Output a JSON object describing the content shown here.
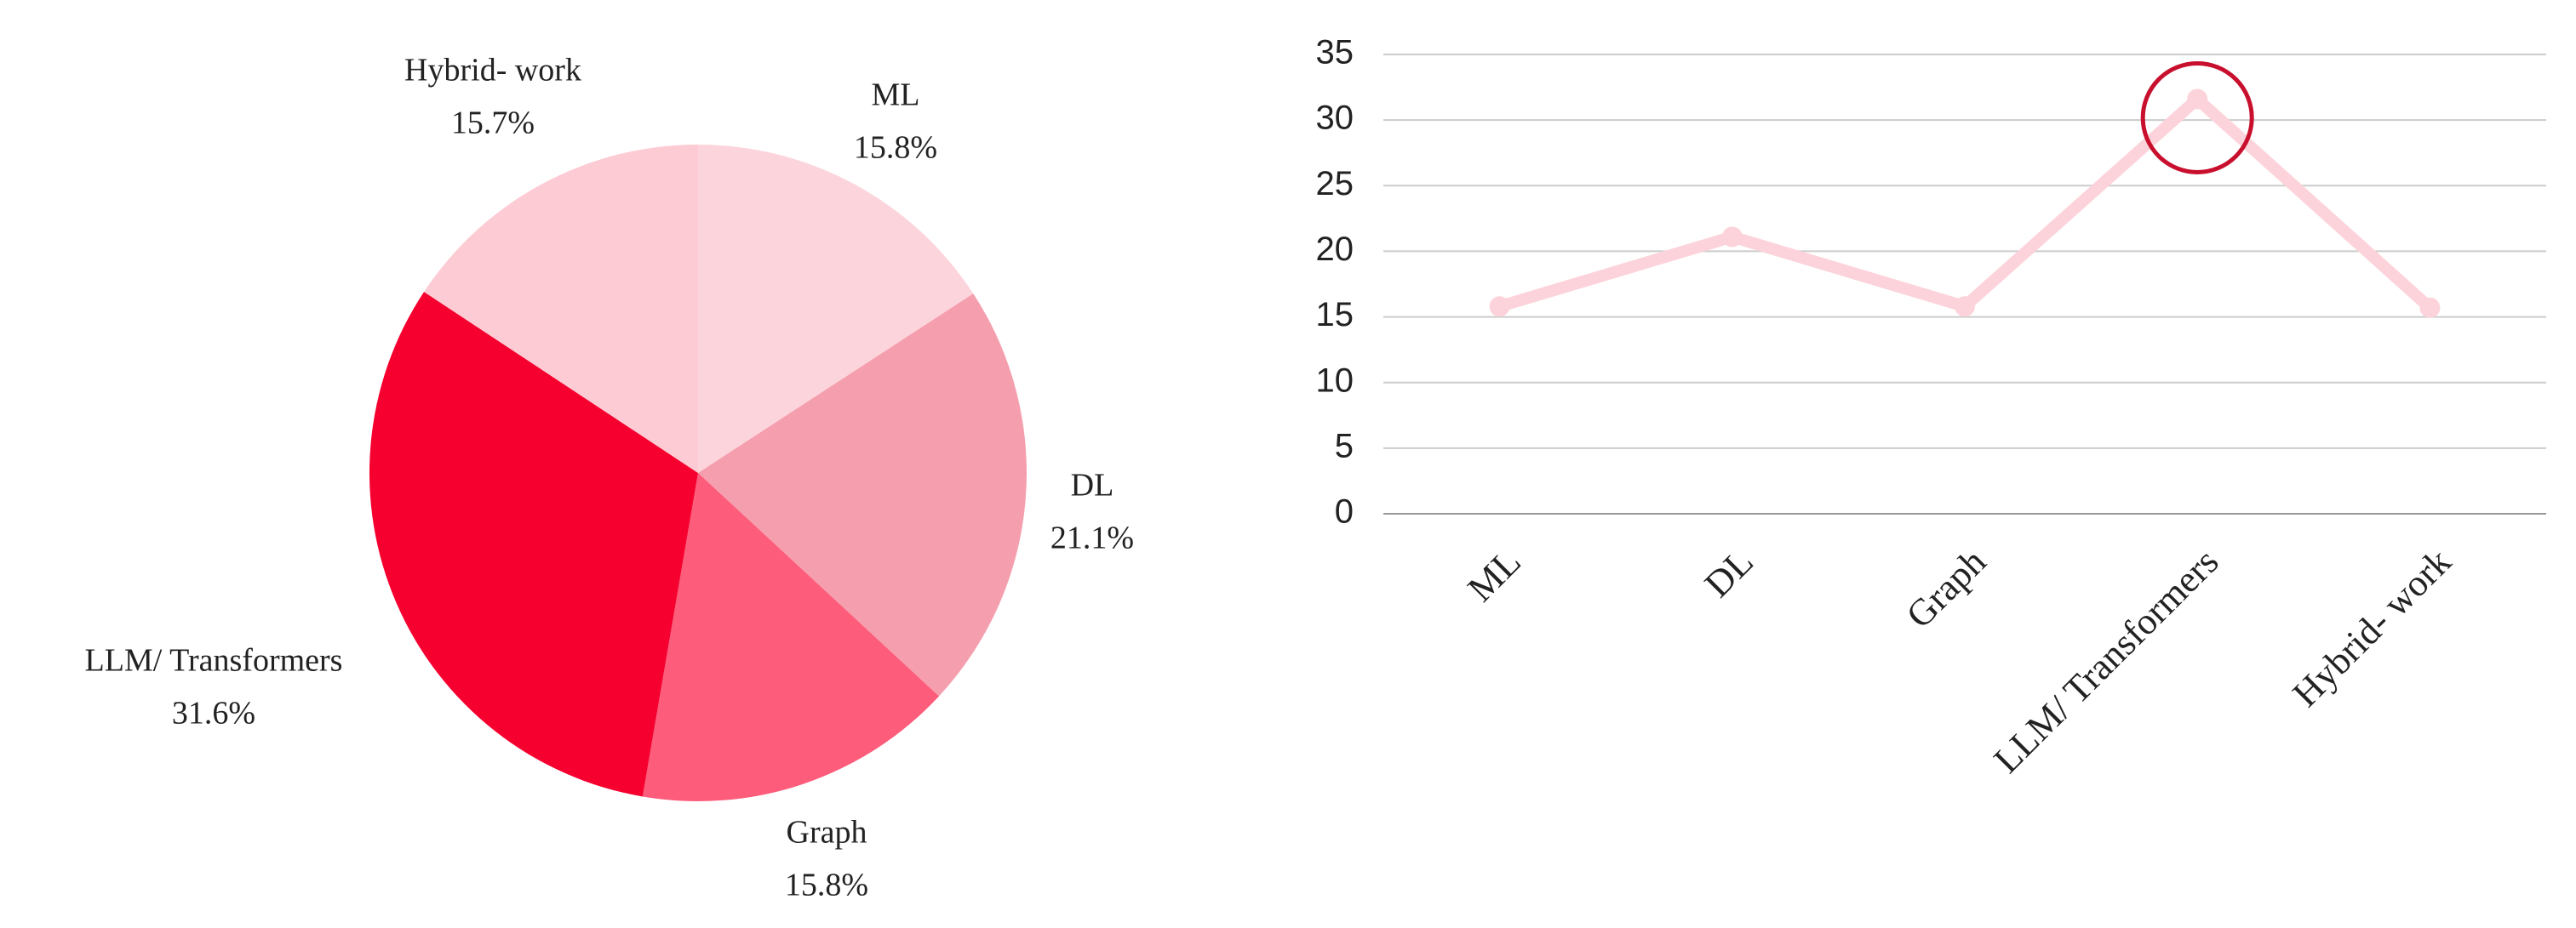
{
  "chart_data": [
    {
      "type": "pie",
      "categories": [
        "ML",
        "DL",
        "Graph",
        "LLM/ Transformers",
        "Hybrid- work"
      ],
      "values": [
        15.8,
        21.1,
        15.8,
        31.6,
        15.7
      ],
      "value_labels": [
        "15.8%",
        "21.1%",
        "15.8%",
        "31.6%",
        "15.7%"
      ],
      "colors": [
        "#fcd5dc",
        "#f59fae",
        "#fd5c7a",
        "#f5002f",
        "#fdcbd4"
      ]
    },
    {
      "type": "line",
      "categories": [
        "ML",
        "DL",
        "Graph",
        "LLM/ Transformers",
        "Hybrid- work"
      ],
      "series": [
        {
          "color": "#fcd3da",
          "values": [
            15.8,
            21.1,
            15.8,
            31.6,
            15.7
          ]
        }
      ],
      "ylim": [
        0,
        35
      ],
      "yticks": [
        0,
        5,
        10,
        15,
        20,
        25,
        30,
        35
      ],
      "grid": true
    }
  ]
}
